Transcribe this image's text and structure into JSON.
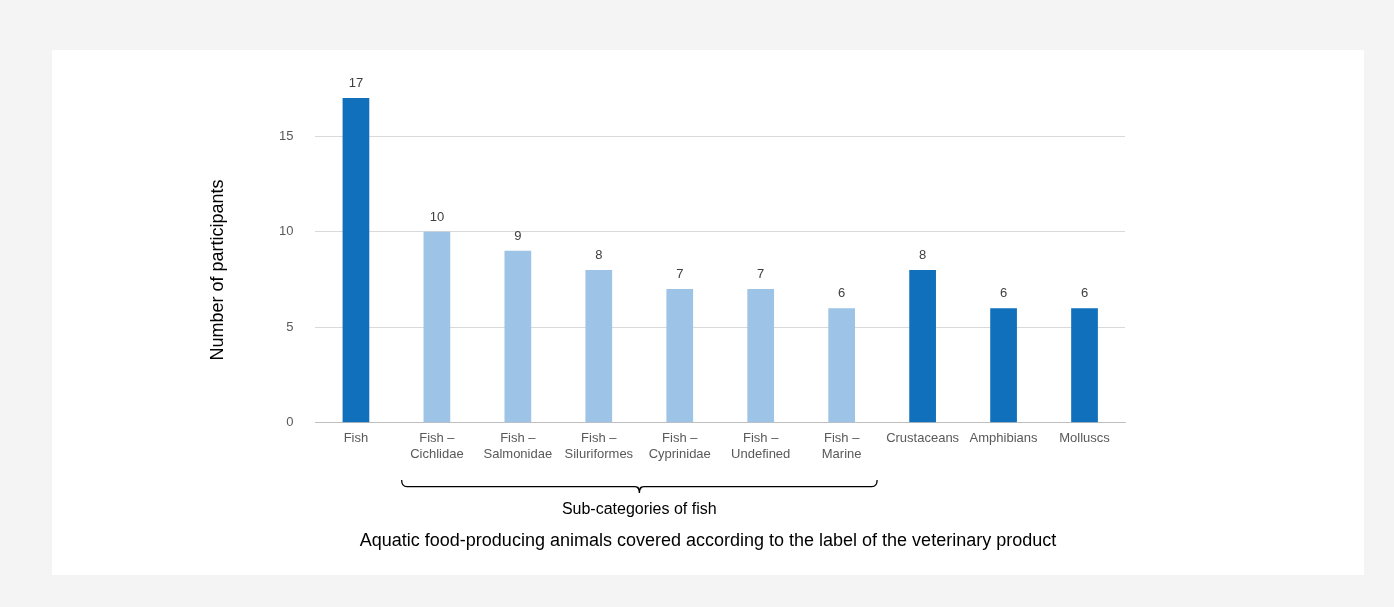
{
  "chart_data": {
    "type": "bar",
    "categories": [
      "Fish",
      "Fish – Cichlidae",
      "Fish – Salmonidae",
      "Fish – Siluriformes",
      "Fish – Cyprinidae",
      "Fish – Undefined",
      "Fish – Marine",
      "Crustaceans",
      "Amphibians",
      "Molluscs"
    ],
    "values": [
      17,
      10,
      9,
      8,
      7,
      7,
      6,
      8,
      6,
      6
    ],
    "colors": [
      "#1170bb",
      "#9dc3e6",
      "#9dc3e6",
      "#9dc3e6",
      "#9dc3e6",
      "#9dc3e6",
      "#9dc3e6",
      "#1170bb",
      "#1170bb",
      "#1170bb"
    ],
    "ylim": [
      0,
      17
    ],
    "yticks": [
      0,
      5,
      10,
      15
    ],
    "grid": "y",
    "legend": false,
    "data_labels": true,
    "ylabel": "Number of participants",
    "xlabel": "Aquatic food-producing animals covered according to the label of the veterinary product",
    "annotations": [
      "Sub-categories of fish"
    ]
  }
}
